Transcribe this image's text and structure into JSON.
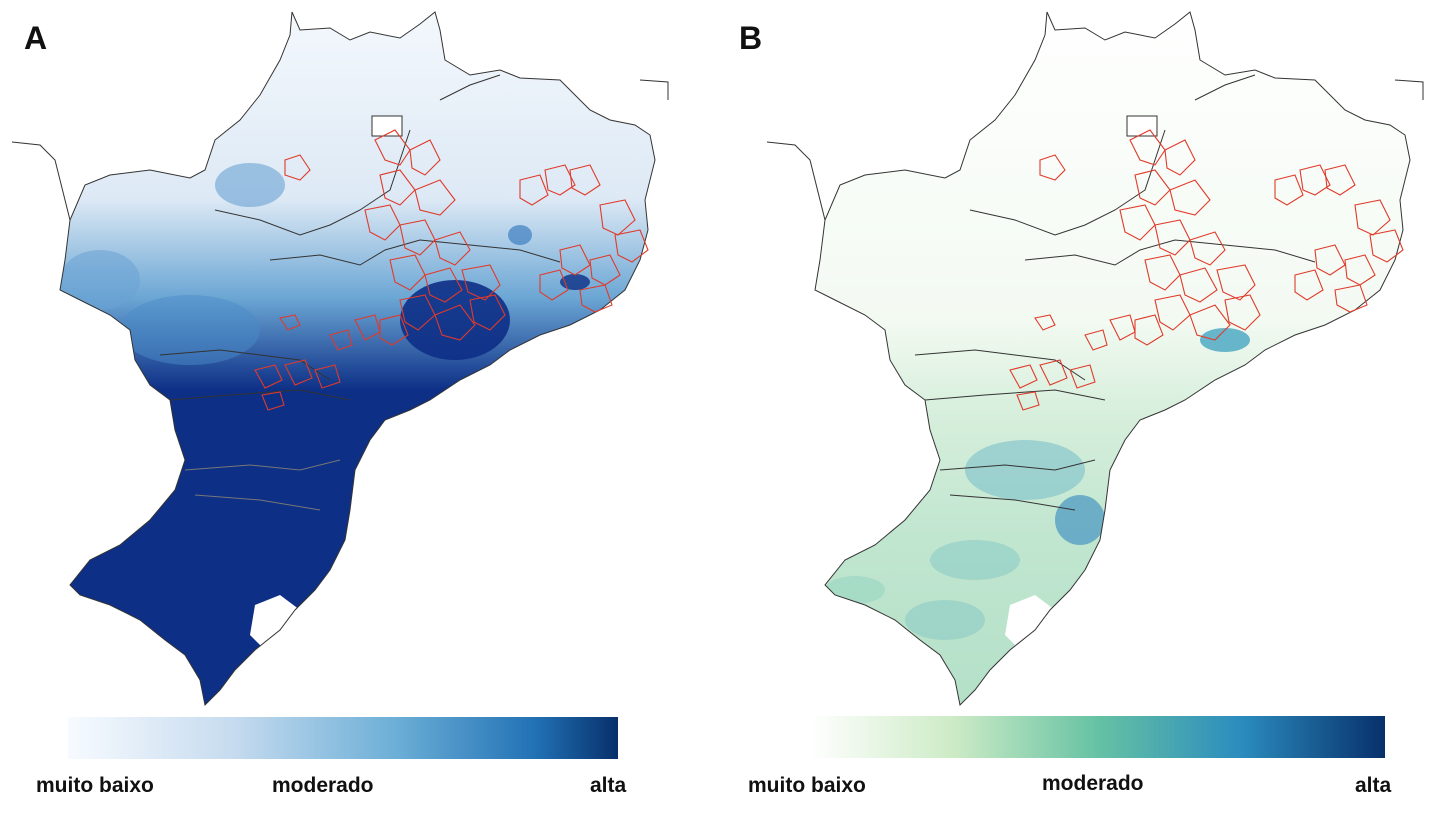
{
  "panels": [
    {
      "letter": "A",
      "palette": {
        "low": "#f7fbff",
        "mid": "#6baed6",
        "high": "#08306b"
      },
      "legend": {
        "low": "muito baixo",
        "mid": "moderado",
        "high": "alta"
      }
    },
    {
      "letter": "B",
      "palette": {
        "low": "#ffffff",
        "mid": "#66c2a4",
        "high": "#08306b"
      },
      "legend": {
        "low": "muito baixo",
        "mid": "moderado",
        "high": "alta"
      }
    }
  ],
  "colors": {
    "boundary": "#333333",
    "municipality_outline": "#e03a2a"
  }
}
